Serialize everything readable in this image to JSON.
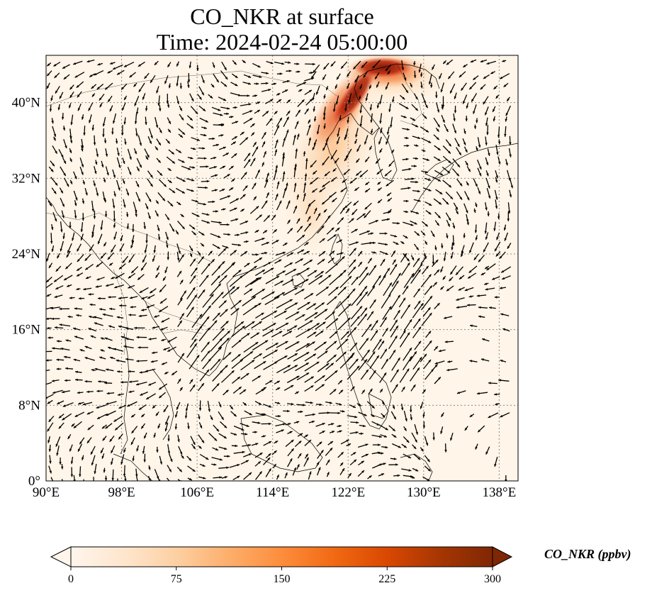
{
  "title": {
    "line1": "CO_NKR at surface",
    "line2": "Time: 2024-02-24 05:00:00"
  },
  "map": {
    "extent": {
      "lon": [
        90,
        140
      ],
      "lat": [
        0,
        45
      ]
    },
    "lon_ticks": [
      {
        "value": 90,
        "label": "90°E"
      },
      {
        "value": 98,
        "label": "98°E"
      },
      {
        "value": 106,
        "label": "106°E"
      },
      {
        "value": 114,
        "label": "114°E"
      },
      {
        "value": 122,
        "label": "122°E"
      },
      {
        "value": 130,
        "label": "130°E"
      },
      {
        "value": 138,
        "label": "138°E"
      }
    ],
    "lat_ticks": [
      {
        "value": 0,
        "label": "0°"
      },
      {
        "value": 8,
        "label": "8°N"
      },
      {
        "value": 16,
        "label": "16°N"
      },
      {
        "value": 24,
        "label": "24°N"
      },
      {
        "value": 32,
        "label": "32°N"
      },
      {
        "value": 40,
        "label": "40°N"
      }
    ],
    "gridlines": true,
    "colors": {
      "background": "#fff5e8",
      "grid": "#888888",
      "coast": "#000000",
      "arrow": "#000000"
    }
  },
  "colorbar": {
    "label": "CO_NKR (ppbv)",
    "ticks": [
      {
        "value": 0,
        "label": "0"
      },
      {
        "value": 75,
        "label": "75"
      },
      {
        "value": 150,
        "label": "150"
      },
      {
        "value": 225,
        "label": "225"
      },
      {
        "value": 300,
        "label": "300"
      }
    ],
    "range": [
      0,
      300
    ],
    "colormap": [
      "#fff5eb",
      "#fee6ce",
      "#fdd0a2",
      "#fdae6b",
      "#fd8d3c",
      "#f16913",
      "#d94801",
      "#a63603",
      "#7f2704"
    ]
  }
}
